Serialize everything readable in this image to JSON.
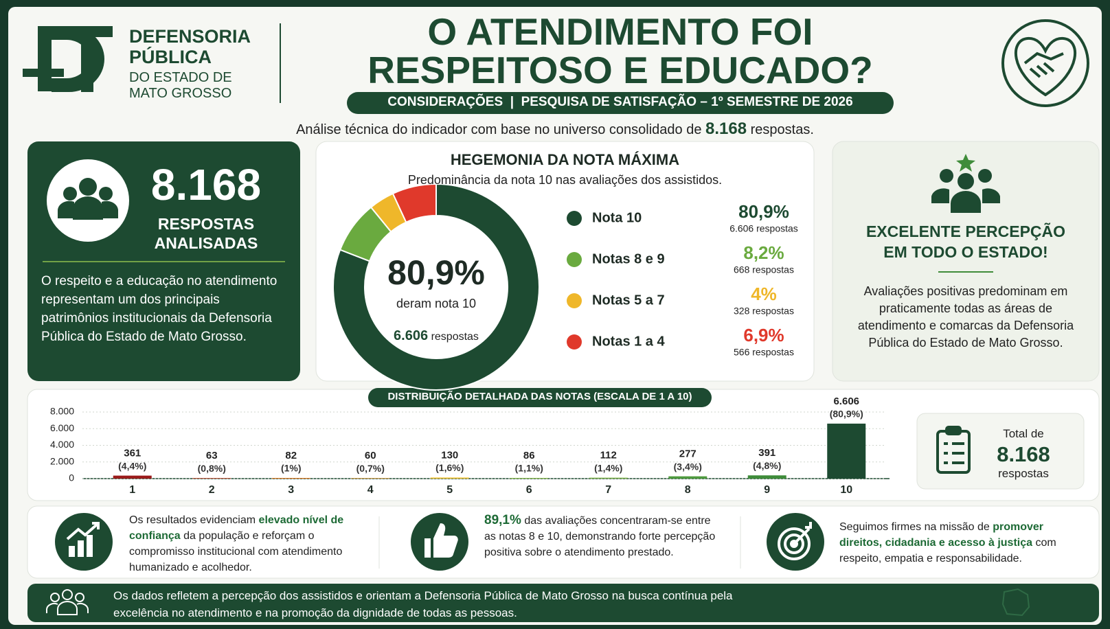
{
  "header": {
    "org_name": [
      "DEFENSORIA",
      "PÚBLICA"
    ],
    "org_region": [
      "DO ESTADO DE",
      "MATO GROSSO"
    ],
    "title": [
      "O ATENDIMENTO FOI",
      "RESPEITOSO E EDUCADO?"
    ],
    "banner": "CONSIDERAÇÕES  |  PESQUISA DE SATISFAÇÃO – 1º SEMESTRE DE 2026",
    "intro": [
      "Análise técnica do indicador com base no universo consolidado de",
      "8.168",
      "respostas."
    ]
  },
  "summary": {
    "total": "8.168",
    "label": [
      "RESPOSTAS",
      "ANALISADAS"
    ],
    "text": "O respeito e a educação no atendimento representam um dos principais patrimônios institucionais da Defensoria Pública do Estado de Mato Grosso."
  },
  "perception": {
    "title": [
      "EXCELENTE PERCEPÇÃO",
      "EM TODO O ESTADO!"
    ],
    "text": "Avaliações positivas predominam em praticamente todas as áreas de atendimento e comarcas da Defensoria Pública do Estado de Mato Grosso."
  },
  "chart_data": [
    {
      "type": "pie",
      "title": "HEGEMONIA DA NOTA MÁXIMA",
      "subtitle": "Predominância da nota 10 nas avaliações dos assistidos.",
      "categories": [
        "Nota 10",
        "Notas 8 e 9",
        "Notas 5 a 7",
        "Notas 1 a 4"
      ],
      "values": [
        80.9,
        8.2,
        4,
        6.9
      ],
      "value_labels": [
        "80,9%",
        "8,2%",
        "4%",
        "6,9%"
      ],
      "count_labels": [
        "6.606 respostas",
        "668 respostas",
        "328 respostas",
        "566 respostas"
      ],
      "colors": [
        "#1d4a31",
        "#6aaa3f",
        "#efb72a",
        "#e0392b"
      ],
      "center": {
        "value": "80,9%",
        "label": "deram nota 10",
        "count": "6.606",
        "unit": "respostas"
      }
    },
    {
      "type": "bar",
      "title": "DISTRIBUIÇÃO DETALHADA DAS NOTAS (ESCALA DE 1 A 10)",
      "categories": [
        "1",
        "2",
        "3",
        "4",
        "5",
        "6",
        "7",
        "8",
        "9",
        "10"
      ],
      "values": [
        361,
        63,
        82,
        60,
        130,
        86,
        112,
        277,
        391,
        6606
      ],
      "value_labels": [
        "361",
        "63",
        "82",
        "60",
        "130",
        "86",
        "112",
        "277",
        "391",
        "6.606"
      ],
      "share_labels": [
        "(4,4%)",
        "(0,8%)",
        "(1%)",
        "(0,7%)",
        "(1,6%)",
        "(1,1%)",
        "(1,4%)",
        "(3,4%)",
        "(4,8%)",
        "(80,9%)"
      ],
      "colors": [
        "#9b1c1c",
        "#e0452b",
        "#ef7d22",
        "#f29b2a",
        "#f2c12e",
        "#8fbf4d",
        "#7fb449",
        "#4e9a3e",
        "#3f8c3a",
        "#1d4a31"
      ],
      "ylim": [
        0,
        8000
      ],
      "yticks": [
        0,
        {
          "value": 2000,
          "label": "2.000"
        },
        {
          "value": 4000,
          "label": "4.000"
        },
        {
          "value": 6000,
          "label": "6.000"
        },
        {
          "value": 8000,
          "label": "8.000"
        }
      ],
      "grid": true
    }
  ],
  "total_box": {
    "label": "Total de",
    "value": "8.168",
    "unit": "respostas"
  },
  "insights": [
    [
      "Os resultados evidenciam",
      "elevado nível de confiança",
      "da população e reforçam o compromisso institucional com atendimento humanizado e acolhedor."
    ],
    [
      "",
      "89,1%",
      "das avaliações concentraram-se entre as notas 8 e 10, demonstrando forte percepção positiva sobre o atendimento prestado."
    ],
    [
      "Seguimos firmes na missão de",
      "promover direitos, cidadania e acesso à justiça",
      "com respeito, empatia e responsabilidade."
    ]
  ],
  "footer": "Os dados refletem a percepção dos assistidos e orientam a Defensoria Pública de Mato Grosso na busca contínua pela excelência no atendimento e na promoção da dignidade de todas as pessoas."
}
